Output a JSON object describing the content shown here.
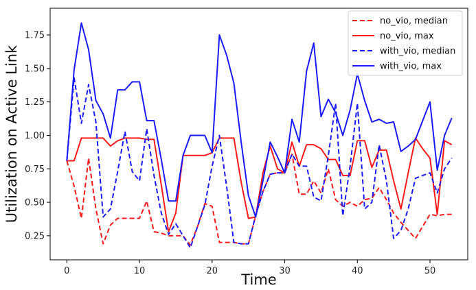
{
  "chart_data": {
    "type": "line",
    "title": "",
    "xlabel": "Time",
    "ylabel": "Utilization on Active Link",
    "xlim": [
      -2.3,
      55.2
    ],
    "ylim": [
      0.07,
      1.95
    ],
    "xticks": [
      0,
      10,
      20,
      30,
      40,
      50
    ],
    "yticks": [
      0.25,
      0.5,
      0.75,
      1.0,
      1.25,
      1.5,
      1.75
    ],
    "xtick_labels": [
      "0",
      "10",
      "20",
      "30",
      "40",
      "50"
    ],
    "ytick_labels": [
      "0.25",
      "0.50",
      "0.75",
      "1.00",
      "1.25",
      "1.50",
      "1.75"
    ],
    "grid": false,
    "legend_position": "top-right",
    "x": [
      0,
      1,
      2,
      3,
      4,
      5,
      6,
      7,
      8,
      9,
      10,
      11,
      12,
      13,
      14,
      15,
      16,
      17,
      18,
      19,
      20,
      21,
      22,
      23,
      24,
      25,
      26,
      27,
      28,
      29,
      30,
      31,
      32,
      33,
      34,
      35,
      36,
      37,
      38,
      39,
      40,
      41,
      42,
      43,
      44,
      45,
      46,
      47,
      48,
      49,
      50,
      51,
      52,
      53
    ],
    "series": [
      {
        "name": "no_vio, median",
        "color": "#ff1a1a",
        "dash": "dashed",
        "values": [
          0.81,
          0.62,
          0.38,
          0.83,
          0.45,
          0.19,
          0.33,
          0.38,
          0.38,
          0.38,
          0.38,
          0.51,
          0.28,
          0.27,
          0.25,
          0.25,
          0.25,
          0.18,
          0.32,
          0.49,
          0.47,
          0.2,
          0.2,
          0.2,
          0.19,
          0.19,
          0.4,
          0.58,
          0.71,
          0.72,
          0.72,
          0.86,
          0.56,
          0.56,
          0.66,
          0.57,
          0.75,
          0.52,
          0.47,
          0.5,
          0.47,
          0.52,
          0.53,
          0.61,
          0.52,
          0.42,
          0.35,
          0.29,
          0.23,
          0.32,
          0.41,
          0.4,
          0.41,
          0.41
        ]
      },
      {
        "name": "no_vio, max",
        "color": "#ff1a1a",
        "dash": "solid",
        "values": [
          0.81,
          0.81,
          0.98,
          0.98,
          0.98,
          0.98,
          0.92,
          0.96,
          0.98,
          0.98,
          0.98,
          0.97,
          0.97,
          0.63,
          0.28,
          0.42,
          0.85,
          0.85,
          0.85,
          0.85,
          0.87,
          0.98,
          0.98,
          0.98,
          0.65,
          0.38,
          0.39,
          0.72,
          0.92,
          0.75,
          0.72,
          0.95,
          0.77,
          0.93,
          0.93,
          0.9,
          0.82,
          0.82,
          0.7,
          0.7,
          0.96,
          0.96,
          0.76,
          0.89,
          0.89,
          0.66,
          0.45,
          0.72,
          0.98,
          0.9,
          0.83,
          0.41,
          0.96,
          0.93
        ]
      },
      {
        "name": "with_vio, median",
        "color": "#1a1aff",
        "dash": "dashed",
        "values": [
          0.81,
          1.43,
          1.09,
          1.38,
          1.1,
          0.39,
          0.45,
          0.73,
          1.03,
          0.73,
          0.66,
          1.05,
          0.7,
          0.42,
          0.26,
          0.34,
          0.25,
          0.16,
          0.32,
          0.48,
          0.77,
          1.0,
          0.62,
          0.2,
          0.19,
          0.19,
          0.4,
          0.58,
          0.71,
          0.72,
          0.72,
          0.86,
          0.77,
          0.77,
          0.54,
          0.51,
          0.85,
          1.24,
          0.4,
          0.77,
          1.24,
          0.45,
          0.5,
          0.93,
          0.66,
          0.23,
          0.29,
          0.45,
          0.68,
          0.7,
          0.72,
          0.57,
          0.75,
          0.83
        ]
      },
      {
        "name": "with_vio, max",
        "color": "#1a1aff",
        "dash": "solid",
        "values": [
          0.81,
          1.49,
          1.84,
          1.64,
          1.26,
          1.16,
          0.98,
          1.34,
          1.34,
          1.4,
          1.4,
          1.11,
          1.11,
          0.82,
          0.51,
          0.51,
          0.85,
          1.0,
          1.0,
          1.0,
          0.87,
          1.75,
          1.6,
          1.39,
          0.95,
          0.55,
          0.39,
          0.66,
          0.95,
          0.84,
          0.72,
          1.12,
          0.95,
          1.48,
          1.69,
          1.14,
          1.27,
          1.17,
          1.0,
          1.19,
          1.46,
          1.26,
          1.1,
          1.12,
          1.09,
          1.1,
          0.88,
          0.92,
          0.97,
          1.11,
          1.25,
          0.74,
          1.0,
          1.13
        ]
      }
    ]
  }
}
